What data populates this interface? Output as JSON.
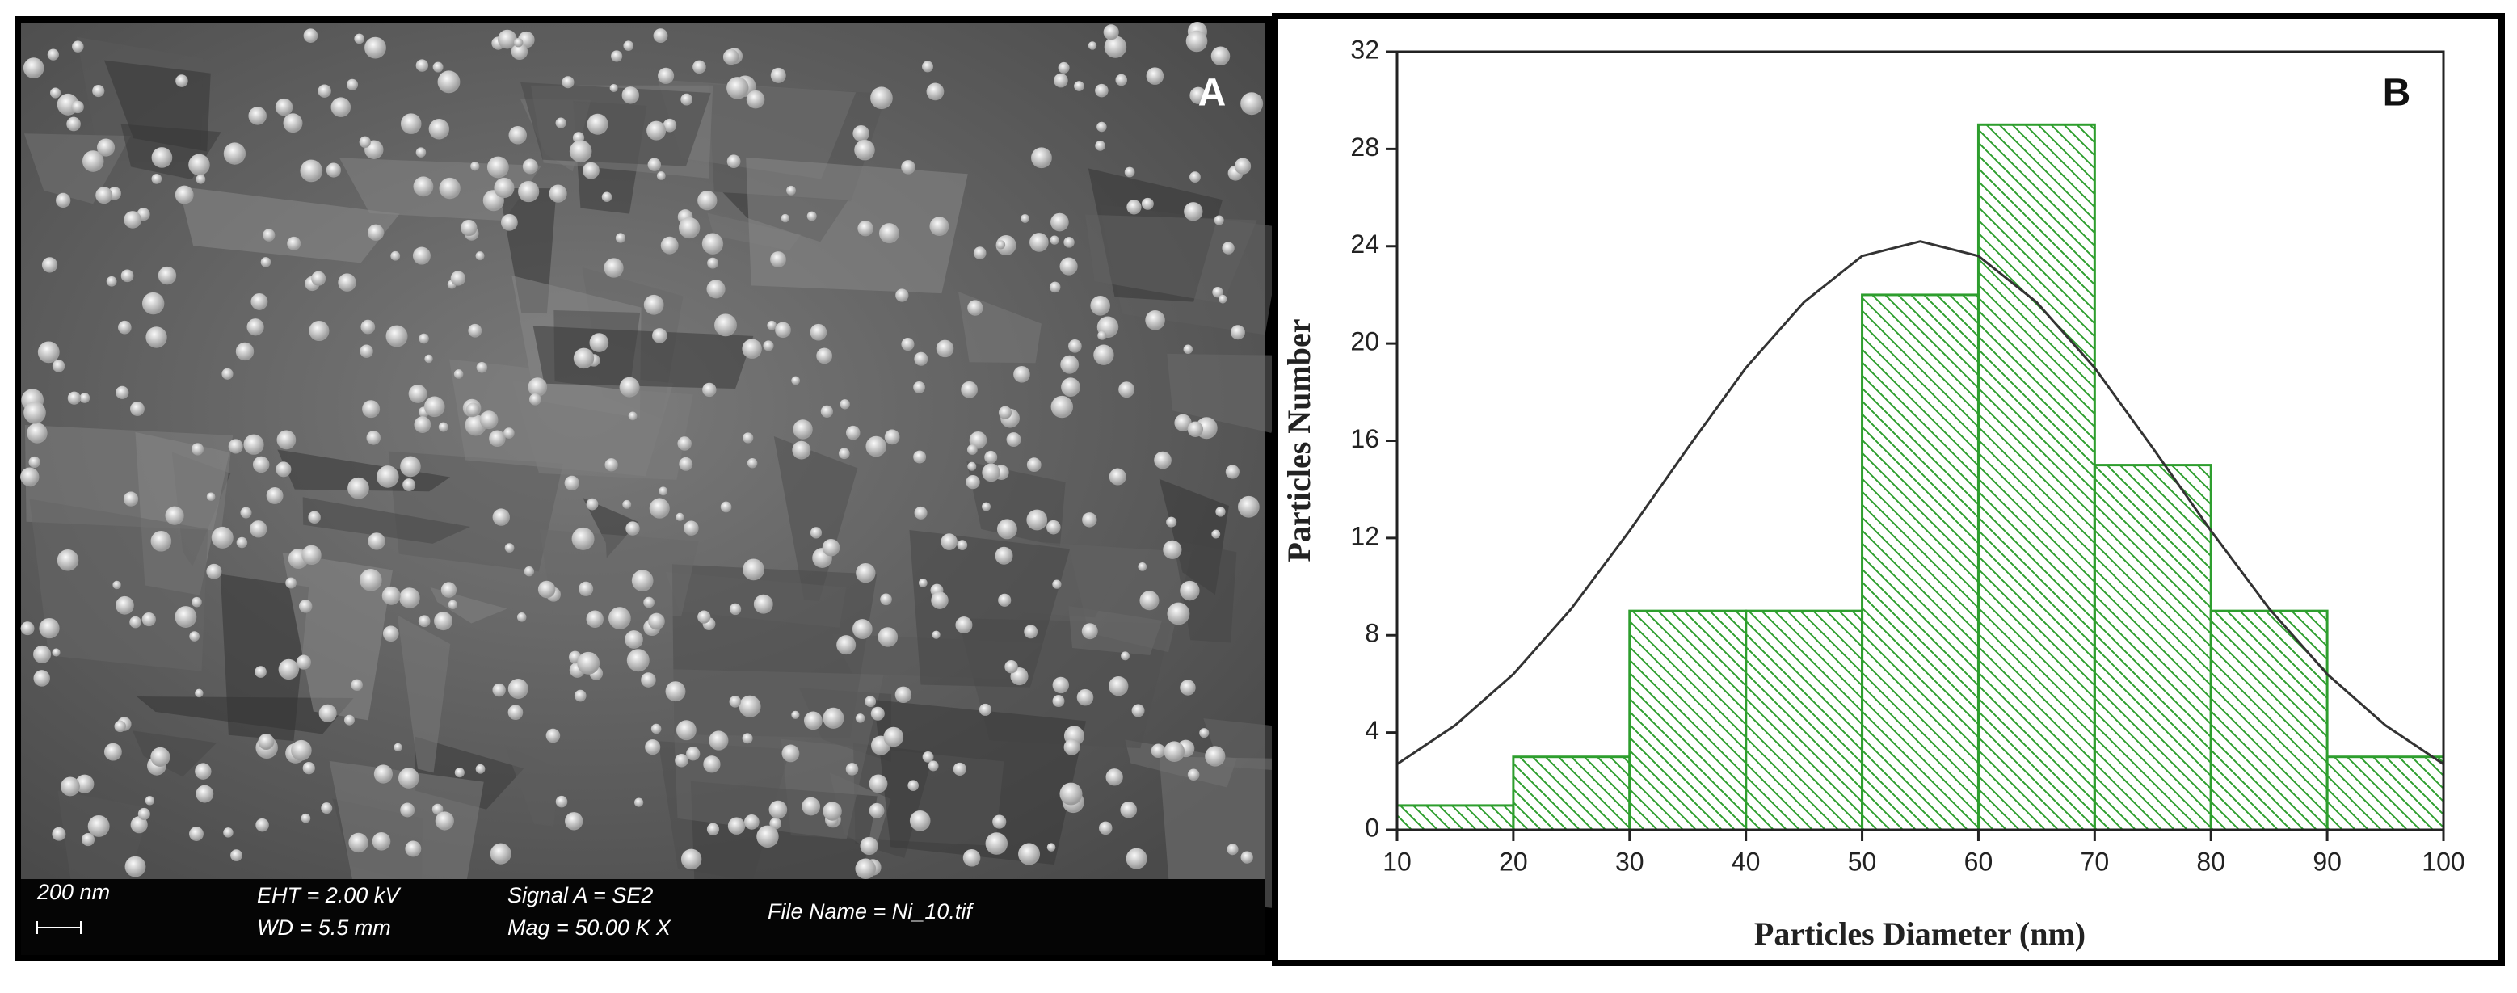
{
  "sem_image": {
    "label": "A",
    "scale_text": "200 nm",
    "eht": "EHT =  2.00 kV",
    "wd": "WD =  5.5 mm",
    "signal": "Signal A = SE2",
    "mag": "Mag =  50.00 K X",
    "file_name": "File Name = Ni_10.tif"
  },
  "chart_data": {
    "type": "histogram",
    "panel_label": "B",
    "x_label": "Particles Diameter (nm)",
    "y_label": "Particles Number",
    "bins": [
      10,
      20,
      30,
      40,
      50,
      60,
      70,
      80,
      90,
      100
    ],
    "counts": [
      1,
      3,
      9,
      9,
      22,
      29,
      15,
      9,
      3
    ],
    "color": "#2e9e2e",
    "fit": {
      "color": "#333333",
      "x": [
        10,
        15,
        20,
        25,
        30,
        35,
        40,
        45,
        50,
        55,
        60,
        65,
        70,
        75,
        80,
        85,
        90,
        95,
        100
      ],
      "values": [
        2.7,
        4.3,
        6.4,
        9.1,
        12.3,
        15.7,
        19.0,
        21.7,
        23.6,
        24.2,
        23.6,
        21.7,
        19.0,
        15.7,
        12.3,
        9.1,
        6.4,
        4.3,
        2.7
      ]
    },
    "xlim": [
      10,
      100
    ],
    "xticks": [
      10,
      20,
      30,
      40,
      50,
      60,
      70,
      80,
      90,
      100
    ],
    "ylim": [
      0,
      32
    ],
    "yticks": [
      0,
      4,
      8,
      12,
      16,
      20,
      24,
      28,
      32
    ]
  }
}
